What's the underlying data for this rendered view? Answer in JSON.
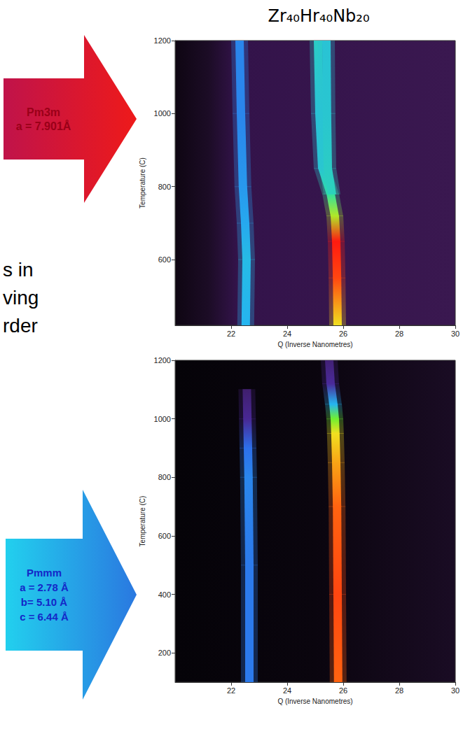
{
  "chart_data": [
    {
      "type": "intensity_map",
      "title": "Zr₄₀Hr₄₀Nb₂₀",
      "side_text": [
        "s in",
        "ving",
        "rder"
      ],
      "annotation": [
        "Pm3m",
        "a = 7.901Å"
      ],
      "x_label": "Q (Inverse Nanometres)",
      "y_label": "Temperature (C)",
      "xlim": [
        20,
        30
      ],
      "xticks": [
        22,
        24,
        26,
        28,
        30
      ],
      "ylim": [
        420,
        1200
      ],
      "yticks": [
        600,
        800,
        1000,
        1200
      ],
      "grid": false,
      "color_range": [
        0,
        1
      ],
      "series": [
        {
          "points": [
            [
              22.52,
              420,
              0.5
            ],
            [
              22.55,
              600,
              0.52
            ],
            [
              22.5,
              700,
              0.48
            ],
            [
              22.42,
              800,
              0.45
            ],
            [
              22.35,
              1000,
              0.42
            ],
            [
              22.3,
              1200,
              0.42
            ]
          ]
        },
        {
          "points": [
            [
              25.8,
              420,
              0.85
            ],
            [
              25.78,
              550,
              0.97
            ],
            [
              25.75,
              650,
              1.0
            ],
            [
              25.7,
              720,
              0.8
            ],
            [
              25.55,
              780,
              0.65
            ],
            [
              25.25,
              850,
              0.55
            ],
            [
              25.15,
              1000,
              0.55
            ],
            [
              25.1,
              1200,
              0.58
            ]
          ]
        },
        {
          "points": [
            [
              25.6,
              780,
              0.6
            ],
            [
              25.45,
              850,
              0.58
            ],
            [
              25.42,
              1000,
              0.56
            ],
            [
              25.4,
              1200,
              0.55
            ]
          ]
        }
      ]
    },
    {
      "type": "intensity_map",
      "annotation": [
        "Pmmm",
        "a = 2.78 Å",
        "b= 5.10 Å",
        "c = 6.44 Å"
      ],
      "x_label": "Q (Inverse Nanometres)",
      "y_label": "Temperature (C)",
      "xlim": [
        20,
        30
      ],
      "xticks": [
        22,
        24,
        26,
        28,
        30
      ],
      "ylim": [
        100,
        1200
      ],
      "yticks": [
        200,
        400,
        600,
        800,
        1000,
        1200
      ],
      "grid": false,
      "color_range": [
        0,
        1
      ],
      "series": [
        {
          "points": [
            [
              22.65,
              100,
              0.4
            ],
            [
              22.65,
              500,
              0.4
            ],
            [
              22.62,
              800,
              0.42
            ],
            [
              22.6,
              900,
              0.38
            ],
            [
              22.58,
              1000,
              0.18
            ],
            [
              22.56,
              1100,
              0.08
            ]
          ]
        },
        {
          "points": [
            [
              25.82,
              100,
              0.95
            ],
            [
              25.8,
              400,
              0.97
            ],
            [
              25.78,
              700,
              0.95
            ],
            [
              25.75,
              850,
              0.9
            ],
            [
              25.72,
              950,
              0.85
            ],
            [
              25.7,
              1000,
              0.75
            ],
            [
              25.65,
              1050,
              0.5
            ],
            [
              25.55,
              1120,
              0.2
            ],
            [
              25.5,
              1200,
              0.1
            ]
          ]
        }
      ]
    }
  ]
}
